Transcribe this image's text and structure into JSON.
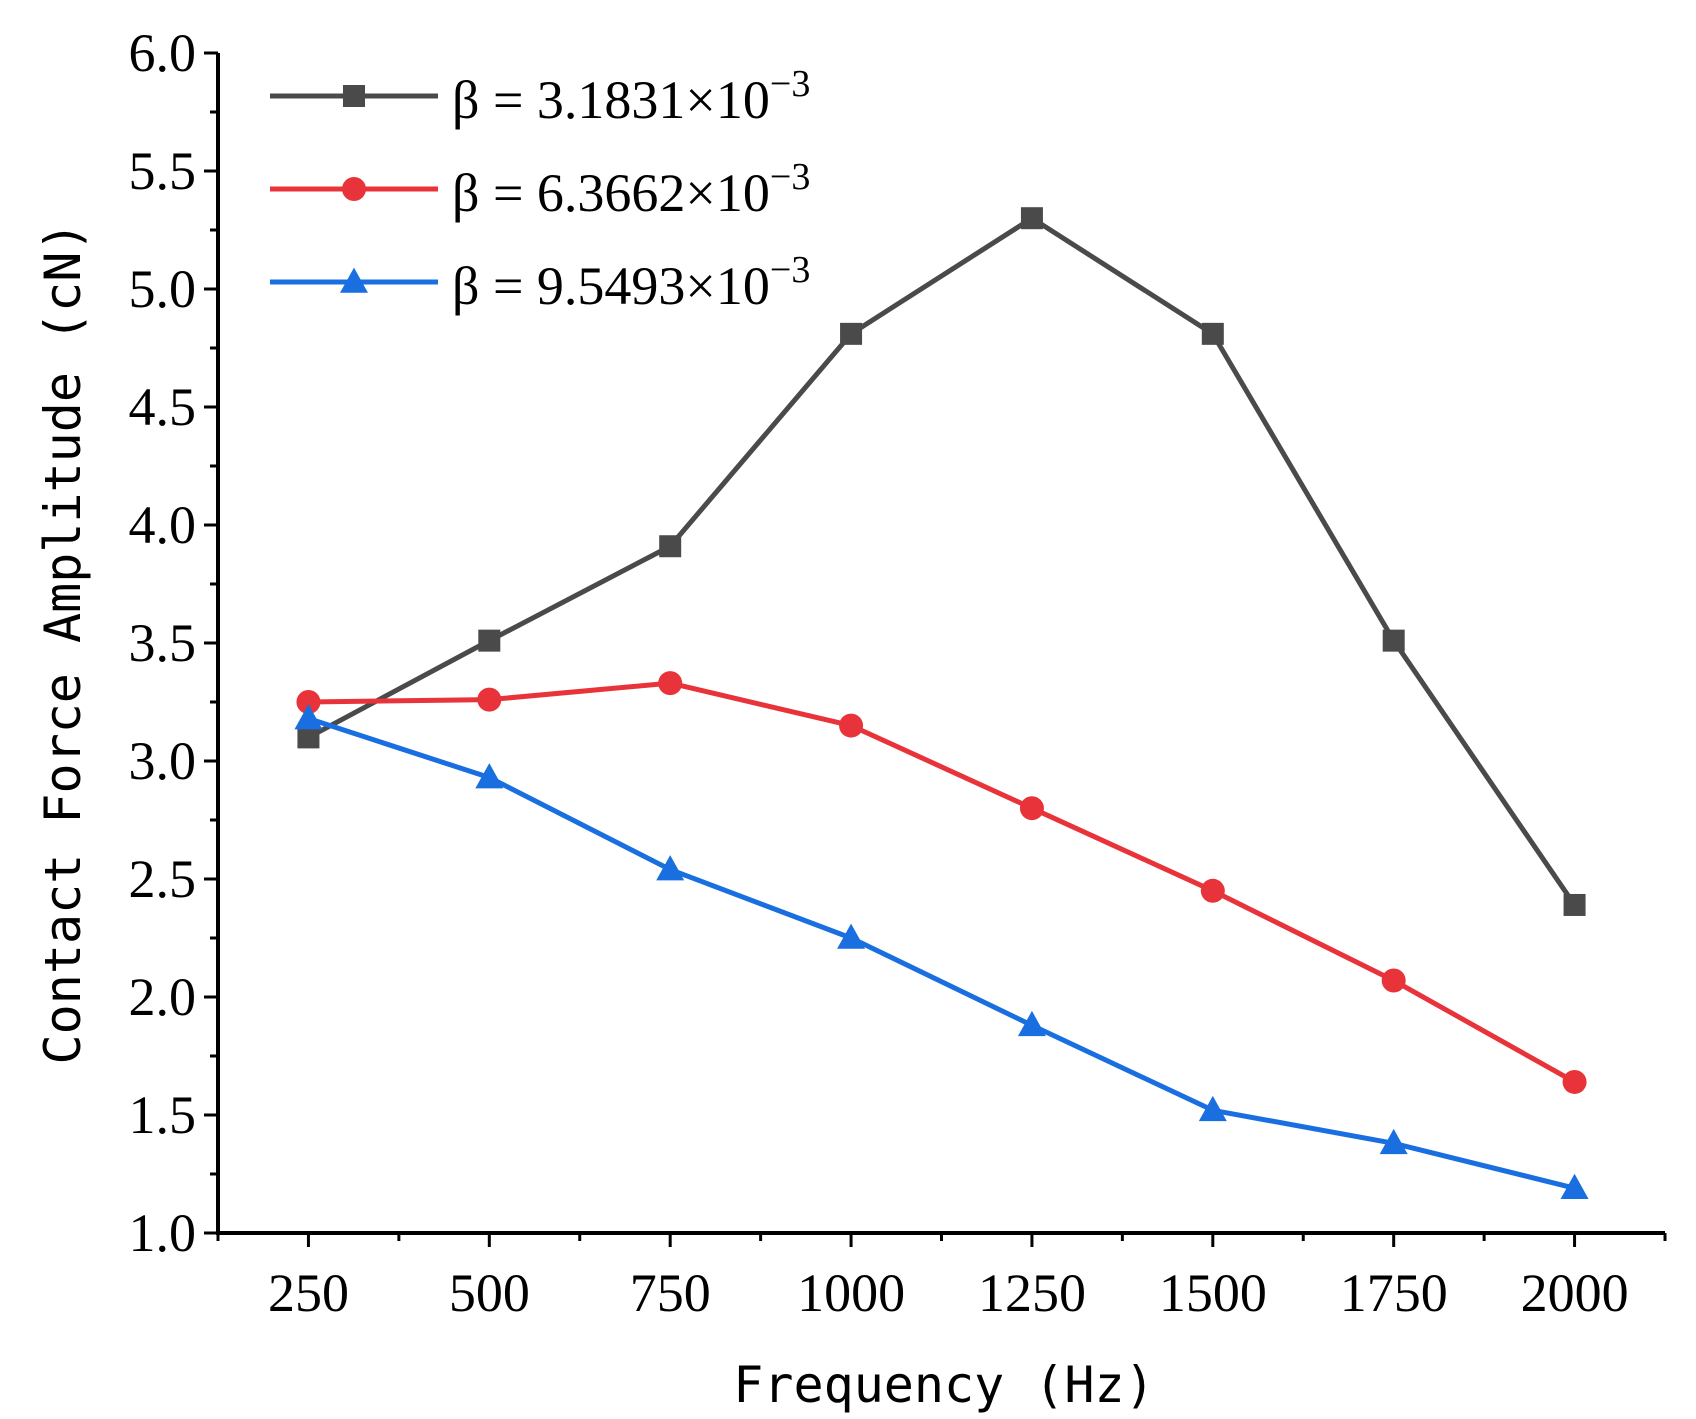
{
  "chart_data": {
    "type": "line",
    "title": "",
    "xlabel": "Frequency (Hz)",
    "ylabel": "Contact Force Amplitude (cN)",
    "x": [
      250,
      500,
      750,
      1000,
      1250,
      1500,
      1750,
      2000
    ],
    "xtick_labels": [
      "250",
      "500",
      "750",
      "1000",
      "1250",
      "1500",
      "1750",
      "2000"
    ],
    "xlim": [
      125,
      2125
    ],
    "ylim": [
      1.0,
      6.0
    ],
    "ytick_labels": [
      "1.0",
      "1.5",
      "2.0",
      "2.5",
      "3.0",
      "3.5",
      "4.0",
      "4.5",
      "5.0",
      "5.5",
      "6.0"
    ],
    "grid": false,
    "legend_position": "top-left",
    "series": [
      {
        "name": "β = 3.1831×10−3",
        "label_main": "β = 3.1831×10",
        "label_exp": "−3",
        "color": "#4a4a4a",
        "marker": "square",
        "values": [
          3.1,
          3.51,
          3.91,
          4.81,
          5.3,
          4.81,
          3.51,
          2.39
        ]
      },
      {
        "name": "β = 6.3662×10−3",
        "label_main": "β = 6.3662×10",
        "label_exp": "−3",
        "color": "#e8333a",
        "marker": "circle",
        "values": [
          3.25,
          3.26,
          3.33,
          3.15,
          2.8,
          2.45,
          2.07,
          1.64
        ]
      },
      {
        "name": "β = 9.5493×10−3",
        "label_main": "β = 9.5493×10",
        "label_exp": "−3",
        "color": "#1a6fe0",
        "marker": "triangle",
        "values": [
          3.18,
          2.93,
          2.54,
          2.25,
          1.88,
          1.52,
          1.38,
          1.19
        ]
      }
    ]
  }
}
